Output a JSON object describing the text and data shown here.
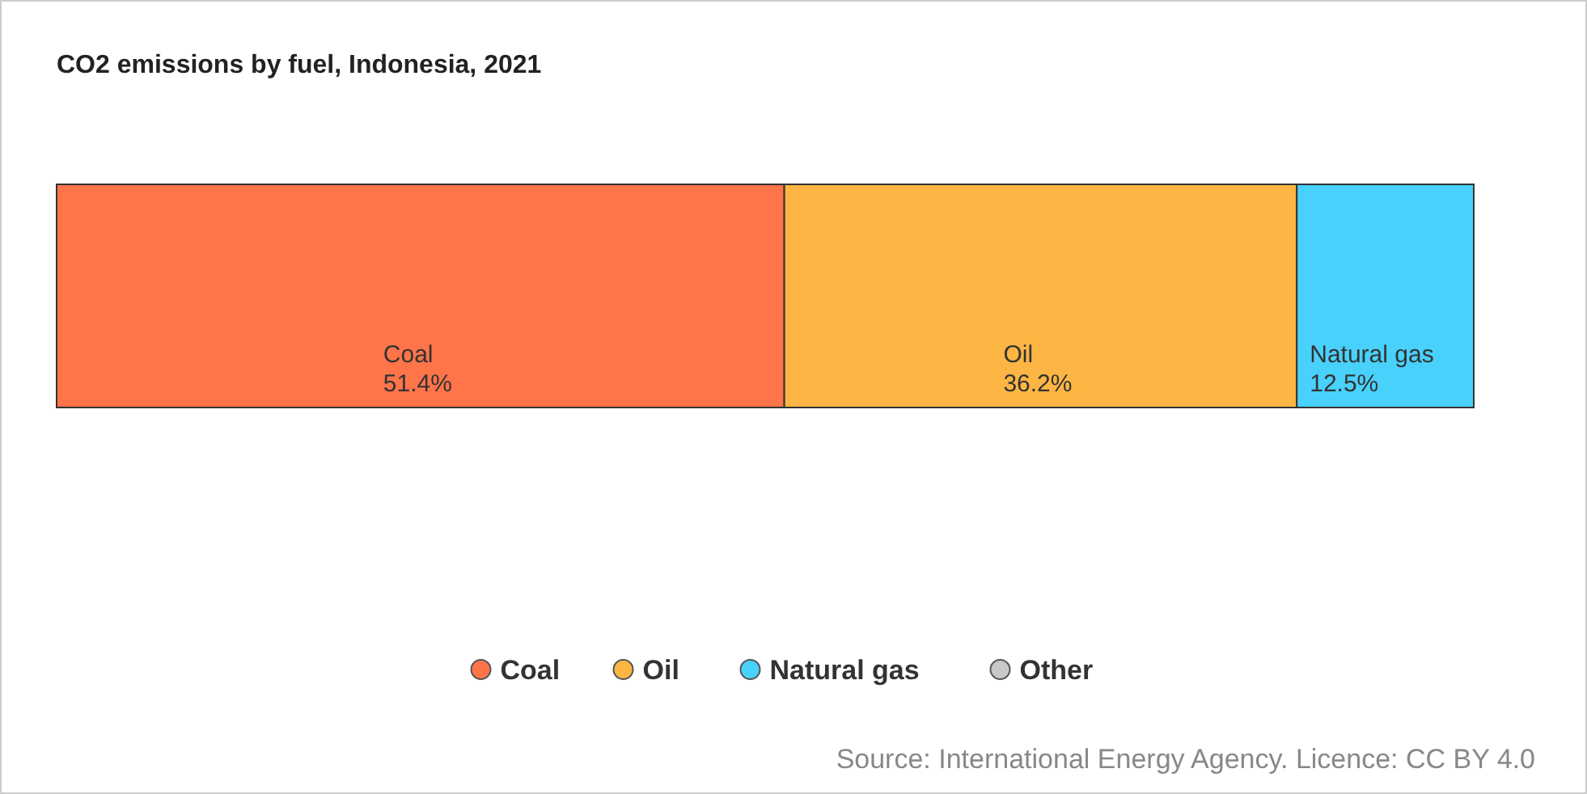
{
  "chart_data": {
    "type": "bar",
    "stacked": true,
    "orientation": "horizontal",
    "title": "CO2 emissions by fuel, Indonesia, 2021",
    "categories": [
      null
    ],
    "series": [
      {
        "name": "Coal",
        "color": "#ff7449",
        "values": [
          51.4
        ],
        "value_labels": [
          "51.4%"
        ]
      },
      {
        "name": "Oil",
        "color": "#fdb643",
        "values": [
          36.2
        ],
        "value_labels": [
          "36.2%"
        ]
      },
      {
        "name": "Natural gas",
        "color": "#48d1fb",
        "values": [
          12.5
        ],
        "value_labels": [
          "12.5%"
        ]
      },
      {
        "name": "Other",
        "color": "#c8c8c8",
        "values": [
          null
        ],
        "value_labels": [
          null
        ]
      }
    ],
    "legend": "bottom",
    "annotations": [
      "Source: International Energy Agency. Licence: CC BY 4.0"
    ]
  }
}
